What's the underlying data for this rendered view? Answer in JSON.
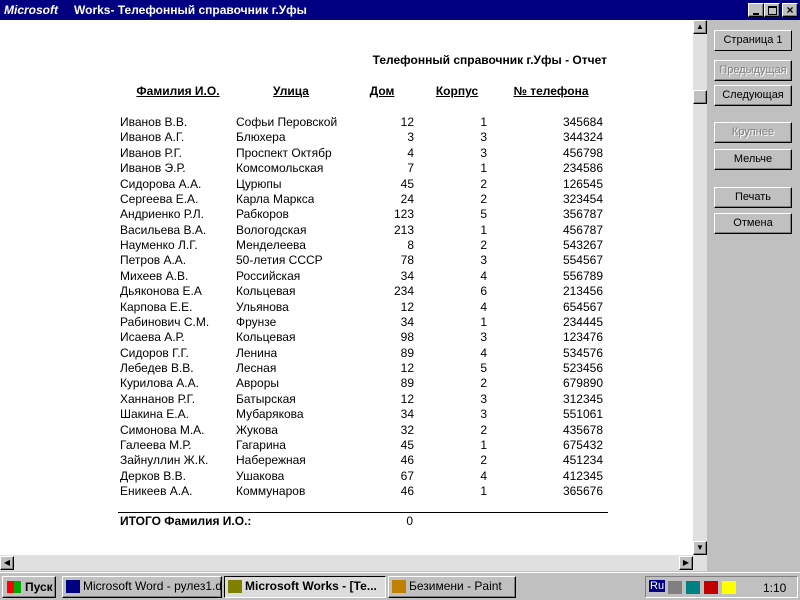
{
  "window": {
    "app": "Microsoft",
    "title": "Works- Телефонный справочник г.Уфы"
  },
  "report": {
    "title": "Телефонный справочник г.Уфы - Отчет",
    "headers": [
      "Фамилия И.О.",
      "Улица",
      "Дом",
      "Корпус",
      "№ телефона"
    ],
    "rows": [
      [
        "Иванов В.В.",
        "Софьи Перовской",
        "12",
        "1",
        "345684"
      ],
      [
        "Иванов А.Г.",
        "Блюхера",
        "3",
        "3",
        "344324"
      ],
      [
        "Иванов Р.Г.",
        "Проспект Октябр",
        "4",
        "3",
        "456798"
      ],
      [
        "Иванов Э.Р.",
        "Комсомольская",
        "7",
        "1",
        "234586"
      ],
      [
        "Сидорова А.А.",
        "Цурюпы",
        "45",
        "2",
        "126545"
      ],
      [
        "Сергеева Е.А.",
        "Карла Маркса",
        "24",
        "2",
        "323454"
      ],
      [
        "Андриенко Р.Л.",
        "Рабкоров",
        "123",
        "5",
        "356787"
      ],
      [
        "Васильева В.А.",
        "Вологодская",
        "213",
        "1",
        "456787"
      ],
      [
        "Науменко Л.Г.",
        "Менделеева",
        "8",
        "2",
        "543267"
      ],
      [
        "Петров А.А.",
        "50-летия СССР",
        "78",
        "3",
        "554567"
      ],
      [
        "Михеев А.В.",
        "Российская",
        "34",
        "4",
        "556789"
      ],
      [
        "Дьяконова Е.А",
        "Кольцевая",
        "234",
        "6",
        "213456"
      ],
      [
        "Карпова Е.Е.",
        "Ульянова",
        "12",
        "4",
        "654567"
      ],
      [
        "Рабинович С.М.",
        "Фрунзе",
        "34",
        "1",
        "234445"
      ],
      [
        "Исаева А.Р.",
        "Кольцевая",
        "98",
        "3",
        "123476"
      ],
      [
        "Сидоров Г.Г.",
        "Ленина",
        "89",
        "4",
        "534576"
      ],
      [
        "Лебедев В.В.",
        "Лесная",
        "12",
        "5",
        "523456"
      ],
      [
        "Курилова А.А.",
        "Авроры",
        "89",
        "2",
        "679890"
      ],
      [
        "Ханнанов Р.Г.",
        "Батырская",
        "12",
        "3",
        "312345"
      ],
      [
        "Шакина Е.А.",
        "Мубарякова",
        "34",
        "3",
        "551061"
      ],
      [
        "Симонова М.А.",
        "Жукова",
        "32",
        "2",
        "435678"
      ],
      [
        "Галеева М.Р.",
        "Гагарина",
        "45",
        "1",
        "675432"
      ],
      [
        "Зайнуллин Ж.К.",
        "Набережная",
        "46",
        "2",
        "451234"
      ],
      [
        "Дерков В.В.",
        "Ушакова",
        "67",
        "4",
        "412345"
      ],
      [
        "Еникеев А.А.",
        "Коммунаров",
        "46",
        "1",
        "365676"
      ]
    ],
    "total_label": "ИТОГО Фамилия И.О.:",
    "total_value": "0"
  },
  "buttons": [
    "Страница 1",
    "Предыдущая",
    "Следующая",
    "Крупнее",
    "Мельче",
    "Печать",
    "Отмена"
  ],
  "taskbar": {
    "start": "Пуск",
    "tasks": [
      "Microsoft Word - рулез1.d...",
      "Microsoft Works - [Те...",
      "Безимени - Paint"
    ],
    "lang": "Ru",
    "clock": "1:10"
  }
}
